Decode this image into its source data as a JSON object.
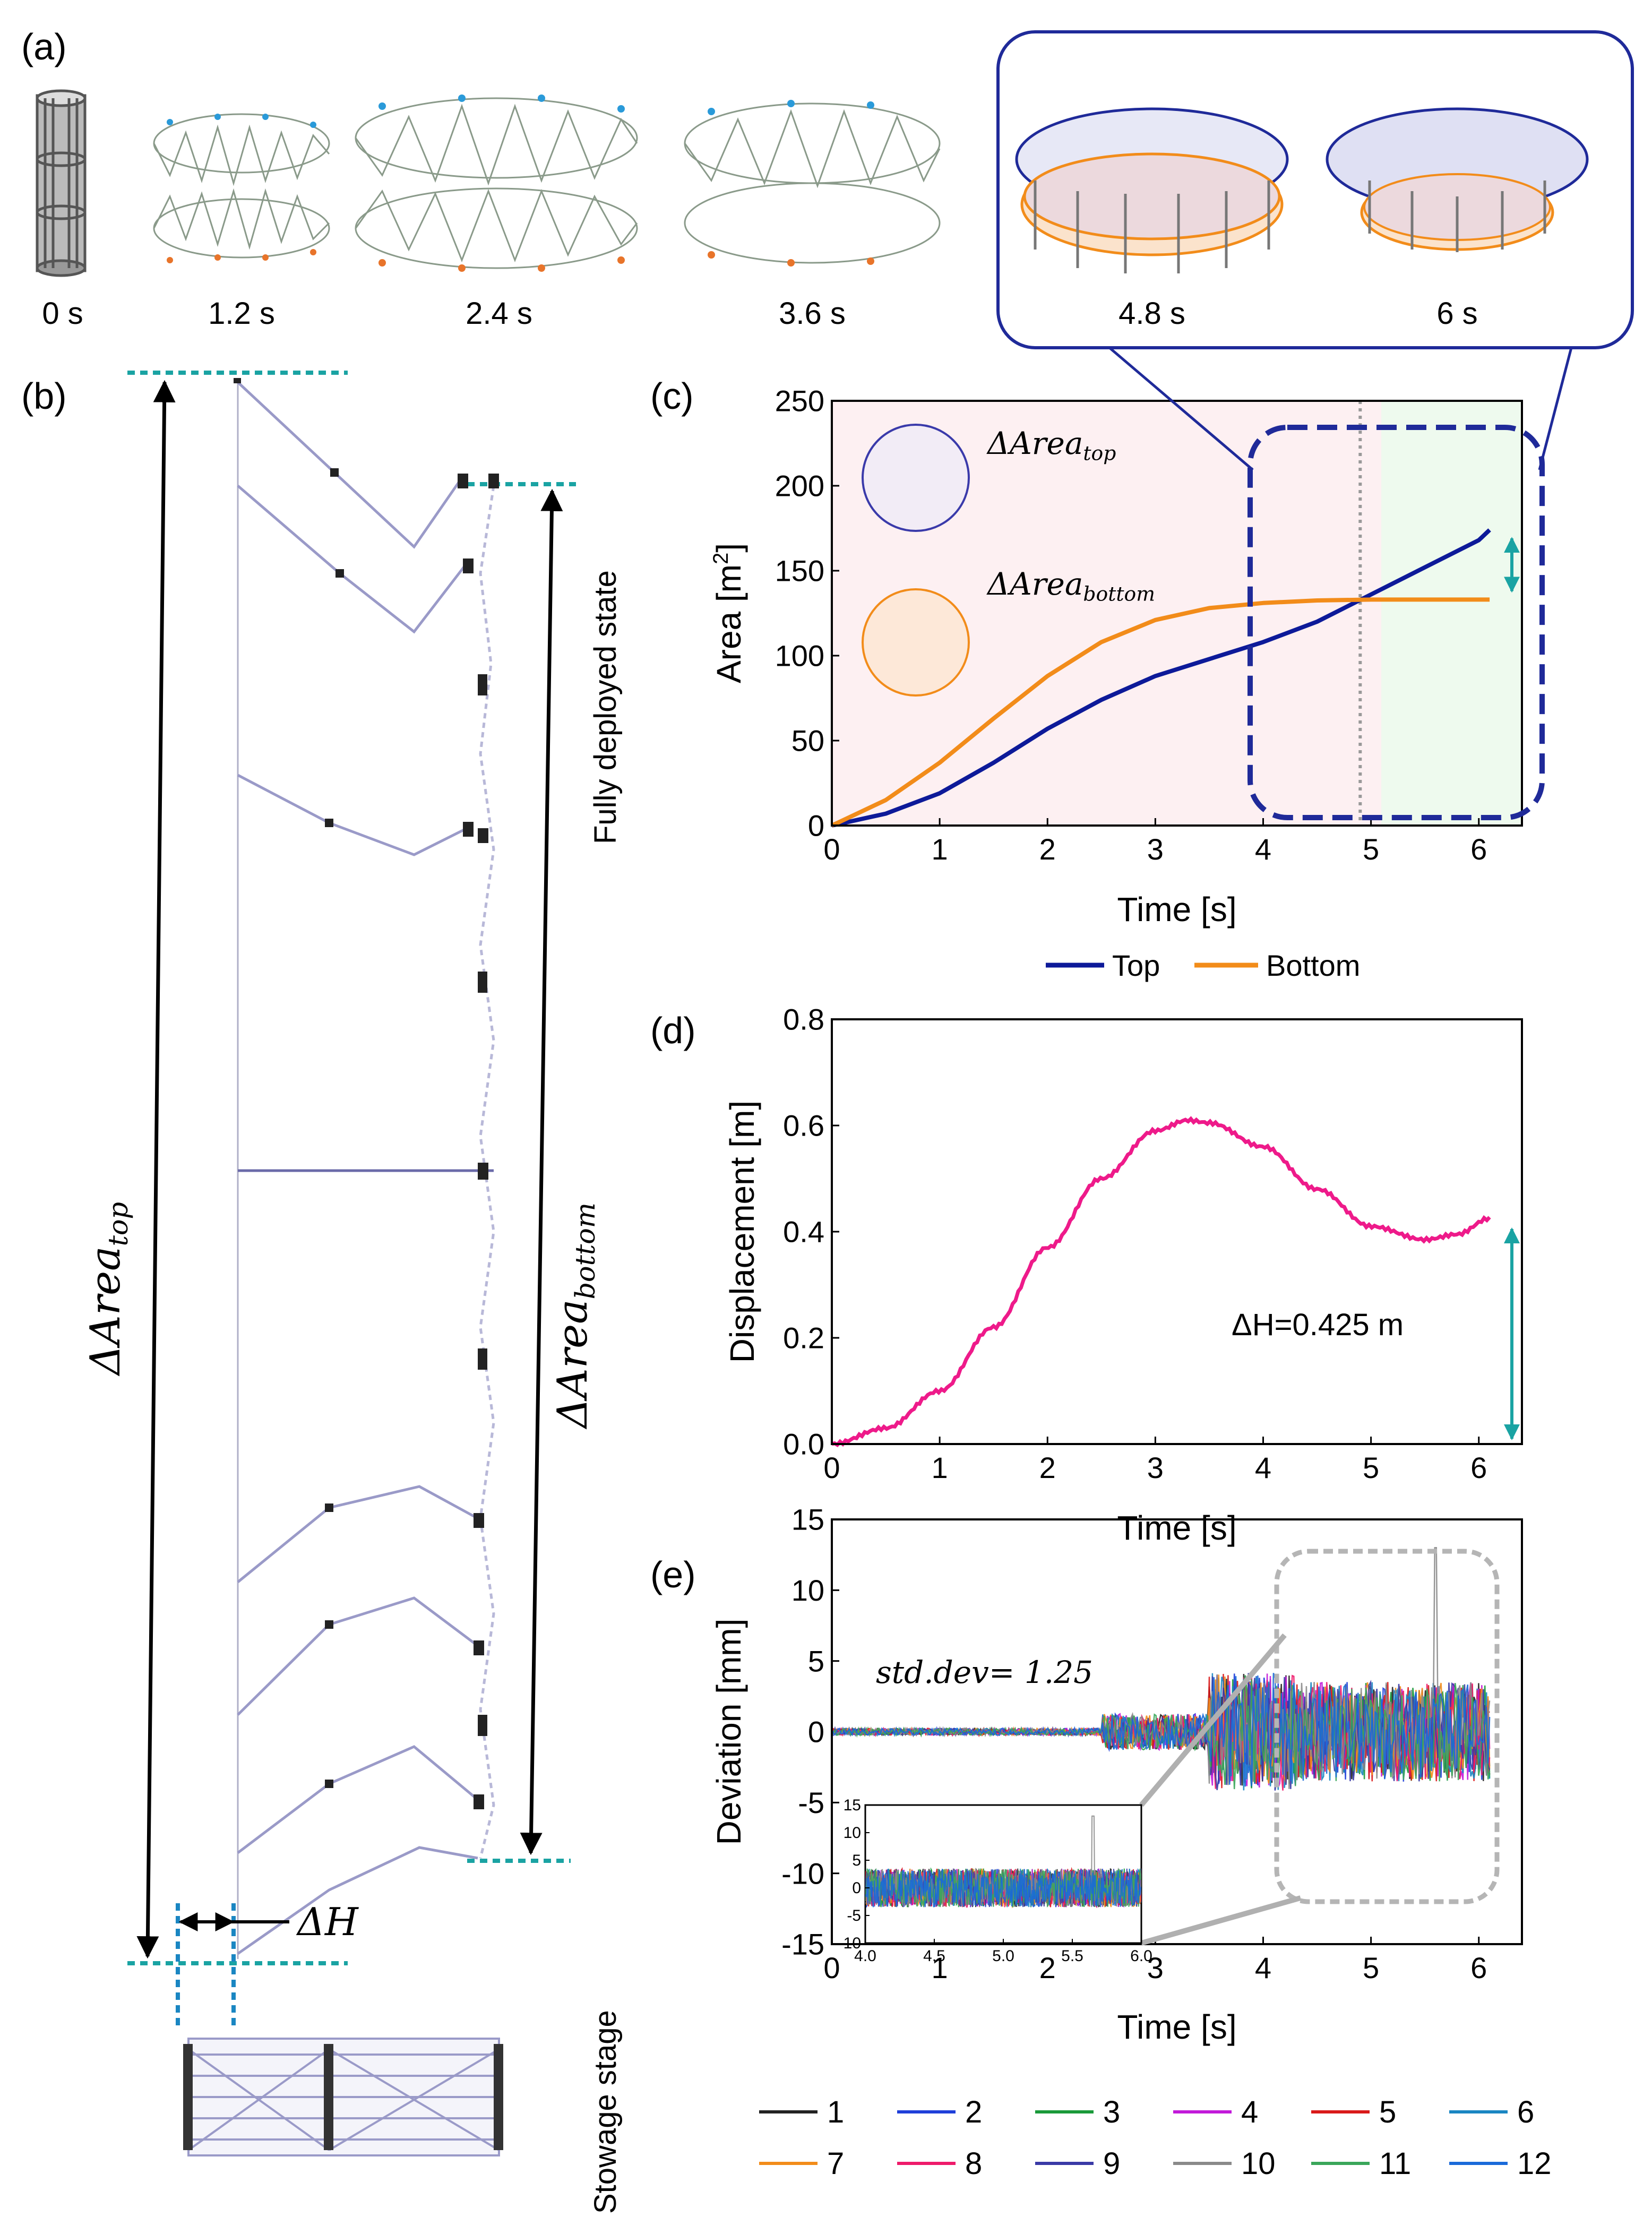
{
  "panel_labels": {
    "a": "(a)",
    "b": "(b)",
    "c": "(c)",
    "d": "(d)",
    "e": "(e)"
  },
  "panel_a": {
    "times": [
      "0 s",
      "1.2 s",
      "2.4 s",
      "3.6 s",
      "4.8 s",
      "6 s"
    ]
  },
  "panel_b": {
    "fully_deployed_label": "Fully deployed state",
    "stowage_label": "Stowage stage",
    "area_top_label": "ΔArea_top",
    "area_bottom_label": "ΔArea_bottom",
    "delta_h_label": "ΔH"
  },
  "colors": {
    "top": "#0d1a99",
    "bottom": "#f28c1a",
    "disp": "#ee1a8a",
    "teal": "#1aa3a3",
    "dashed_box": "#1f2a99",
    "pink_bg": "#fdf0f2",
    "green_bg": "#eefaee"
  },
  "chart_data": [
    {
      "id": "c",
      "type": "line",
      "title": "",
      "xlabel": "Time [s]",
      "ylabel": "Area [m²]",
      "xlim": [
        0,
        6.4
      ],
      "ylim": [
        0,
        250
      ],
      "xticks": [
        "0",
        "1",
        "2",
        "3",
        "4",
        "5",
        "6"
      ],
      "yticks": [
        "0",
        "50",
        "100",
        "150",
        "200",
        "250"
      ],
      "legend": [
        "Top",
        "Bottom"
      ],
      "legend_position": "bottom",
      "annotations": {
        "area_top": "ΔArea_top",
        "area_bottom": "ΔArea_bottom"
      },
      "vline_x": 4.9,
      "series": [
        {
          "name": "Top",
          "x": [
            0,
            0.5,
            1,
            1.5,
            2,
            2.5,
            3,
            3.5,
            4,
            4.5,
            5,
            5.5,
            6,
            6.1
          ],
          "values": [
            0,
            7,
            19,
            37,
            57,
            74,
            88,
            98,
            108,
            120,
            136,
            152,
            168,
            174
          ]
        },
        {
          "name": "Bottom",
          "x": [
            0,
            0.5,
            1,
            1.5,
            2,
            2.5,
            3,
            3.5,
            4,
            4.5,
            5,
            5.5,
            6,
            6.1
          ],
          "values": [
            0,
            15,
            37,
            63,
            88,
            108,
            121,
            128,
            131,
            132.5,
            133,
            133,
            133,
            133
          ]
        }
      ]
    },
    {
      "id": "d",
      "type": "line",
      "title": "",
      "xlabel": "Time [s]",
      "ylabel": "Displacement [m]",
      "xlim": [
        0,
        6.4
      ],
      "ylim": [
        0,
        0.8
      ],
      "xticks": [
        "0",
        "1",
        "2",
        "3",
        "4",
        "5",
        "6"
      ],
      "yticks": [
        "0.0",
        "0.2",
        "0.4",
        "0.6",
        "0.8"
      ],
      "annotation": "ΔH=0.425 m",
      "series": [
        {
          "name": "Displacement",
          "x": [
            0,
            0.5,
            1,
            1.5,
            2,
            2.5,
            3,
            3.3,
            3.5,
            4,
            4.5,
            5,
            5.5,
            5.8,
            6.1
          ],
          "values": [
            0,
            0.03,
            0.1,
            0.22,
            0.37,
            0.5,
            0.59,
            0.61,
            0.605,
            0.56,
            0.48,
            0.41,
            0.385,
            0.395,
            0.425
          ]
        }
      ]
    },
    {
      "id": "e",
      "type": "line",
      "title": "",
      "xlabel": "Time [s]",
      "ylabel": "Deviation [mm]",
      "xlim": [
        0,
        6.4
      ],
      "ylim": [
        -15,
        15
      ],
      "xticks": [
        "0",
        "1",
        "2",
        "3",
        "4",
        "5",
        "6"
      ],
      "yticks": [
        "-15",
        "-10",
        "-5",
        "0",
        "5",
        "10",
        "15"
      ],
      "annotation": "std.dev= 1.25",
      "legend": [
        "1",
        "2",
        "3",
        "4",
        "5",
        "6",
        "7",
        "8",
        "9",
        "10",
        "11",
        "12"
      ],
      "legend_position": "bottom",
      "series_colors": [
        "#222222",
        "#1f3fd9",
        "#1a9a3a",
        "#c21ad9",
        "#d91a1a",
        "#1a86c2",
        "#f28c1a",
        "#ee1a6a",
        "#3a3aa6",
        "#8a8a8a",
        "#3aa65a",
        "#1a6ad9"
      ],
      "inset": {
        "xlim": [
          4.0,
          6.0
        ],
        "ylim": [
          -10,
          15
        ],
        "xticks": [
          "4.0",
          "4.5",
          "5.0",
          "5.5",
          "6.0"
        ],
        "yticks": [
          "-10",
          "-5",
          "0",
          "5",
          "10",
          "15"
        ]
      }
    }
  ]
}
